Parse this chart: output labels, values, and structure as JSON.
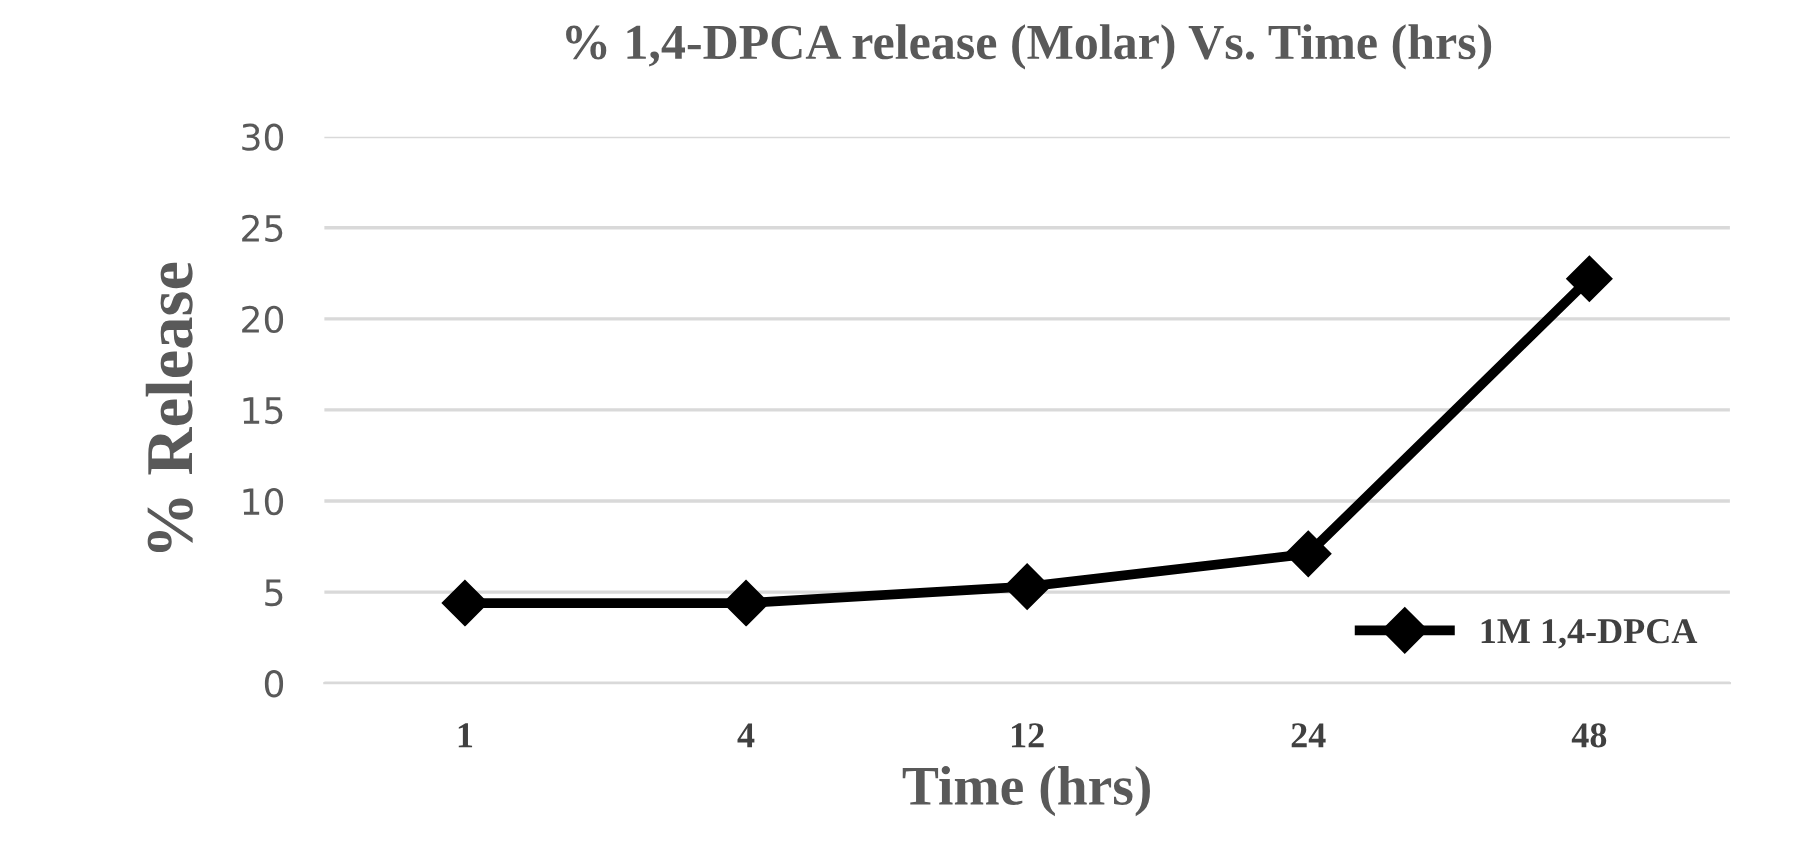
{
  "chart_data": {
    "type": "line",
    "title": "% 1,4-DPCA release (Molar) Vs. Time (hrs)",
    "xlabel": "Time (hrs)",
    "ylabel": "% Release",
    "categories": [
      "1",
      "4",
      "12",
      "24",
      "48"
    ],
    "series": [
      {
        "name": "1M 1,4-DPCA",
        "color": "#000000",
        "values": [
          4.4,
          4.4,
          5.3,
          7.1,
          22.2
        ]
      }
    ],
    "ylim": [
      0,
      30
    ],
    "yticks": [
      0,
      5,
      10,
      15,
      20,
      25,
      30
    ],
    "grid": "y",
    "legend": "bottom right",
    "marker": "diamond",
    "line_style": "solid"
  }
}
